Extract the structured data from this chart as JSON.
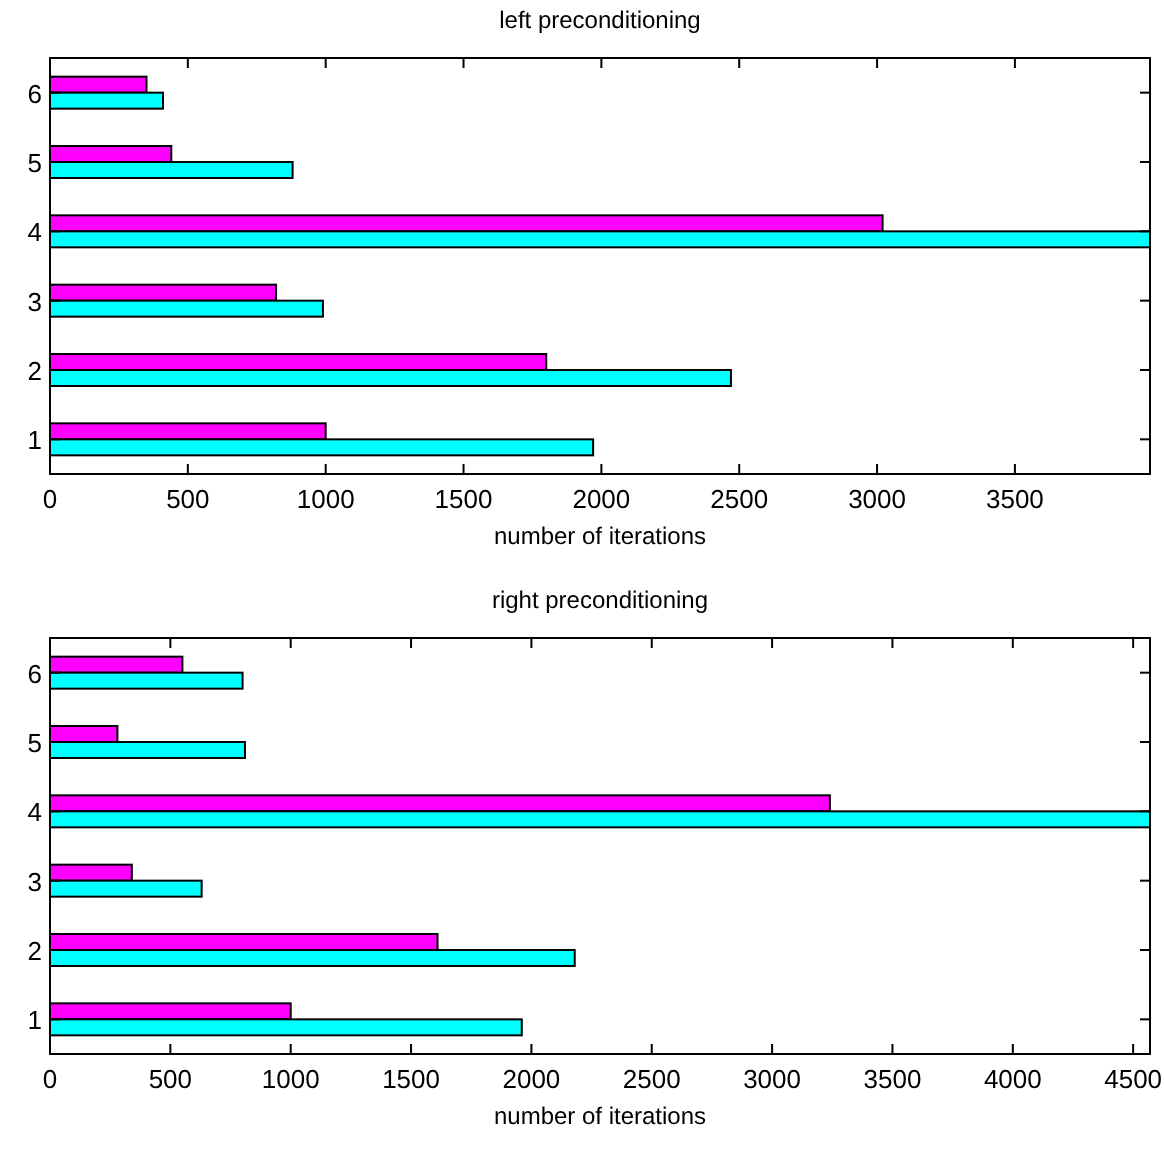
{
  "chart_data": [
    {
      "type": "bar",
      "orientation": "horizontal",
      "title": "left preconditioning",
      "xlabel": "number of iterations",
      "categories": [
        "6",
        "5",
        "4",
        "3",
        "2",
        "1"
      ],
      "series": [
        {
          "color": "#ff00ff",
          "values": [
            350,
            440,
            3020,
            820,
            1800,
            1000
          ]
        },
        {
          "color": "#00ffff",
          "values": [
            410,
            880,
            3990,
            990,
            2470,
            1970
          ]
        }
      ],
      "xlim": [
        0,
        3990
      ],
      "xticks": [
        0,
        500,
        1000,
        1500,
        2000,
        2500,
        3000,
        3500
      ]
    },
    {
      "type": "bar",
      "orientation": "horizontal",
      "title": "right preconditioning",
      "xlabel": "number of iterations",
      "categories": [
        "6",
        "5",
        "4",
        "3",
        "2",
        "1"
      ],
      "series": [
        {
          "color": "#ff00ff",
          "values": [
            550,
            280,
            3240,
            340,
            1610,
            1000
          ]
        },
        {
          "color": "#00ffff",
          "values": [
            800,
            810,
            4570,
            630,
            2180,
            1960
          ]
        }
      ],
      "xlim": [
        0,
        4570
      ],
      "xticks": [
        0,
        500,
        1000,
        1500,
        2000,
        2500,
        3000,
        3500,
        4000,
        4500
      ]
    }
  ]
}
